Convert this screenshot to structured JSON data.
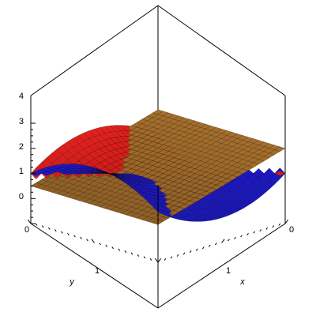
{
  "chart_data": {
    "type": "surface3d",
    "title": "",
    "xlabel": "x",
    "ylabel": "y",
    "zlabel": "",
    "xlim": [
      0,
      2
    ],
    "ylim": [
      0,
      2
    ],
    "zlim": [
      0,
      4
    ],
    "x_ticks": [
      "0",
      "1"
    ],
    "y_ticks": [
      "0",
      "1"
    ],
    "z_ticks": [
      "0",
      "1",
      "2",
      "3",
      "4"
    ],
    "grid": false,
    "surfaces": [
      {
        "name": "",
        "kind": "saddle",
        "color": "#e8211d",
        "formula": "z = 2 + (x-1)^2 - (y-1)^2, shown where x + y <= 2"
      },
      {
        "name": "",
        "kind": "saddle",
        "color": "#1f1bd8",
        "formula": "z = 2 - (x-1)^2 + (y-1)^2, shown where x + y >= 2"
      },
      {
        "name": "",
        "kind": "plane",
        "color": "#a8702b",
        "formula": "z = 3 - 1.5*y"
      }
    ],
    "colors": {
      "red_surface": "#e8211d",
      "blue_surface": "#1f1bd8",
      "plane": "#a8702b",
      "mesh": "#000000",
      "box": "#000000"
    }
  }
}
